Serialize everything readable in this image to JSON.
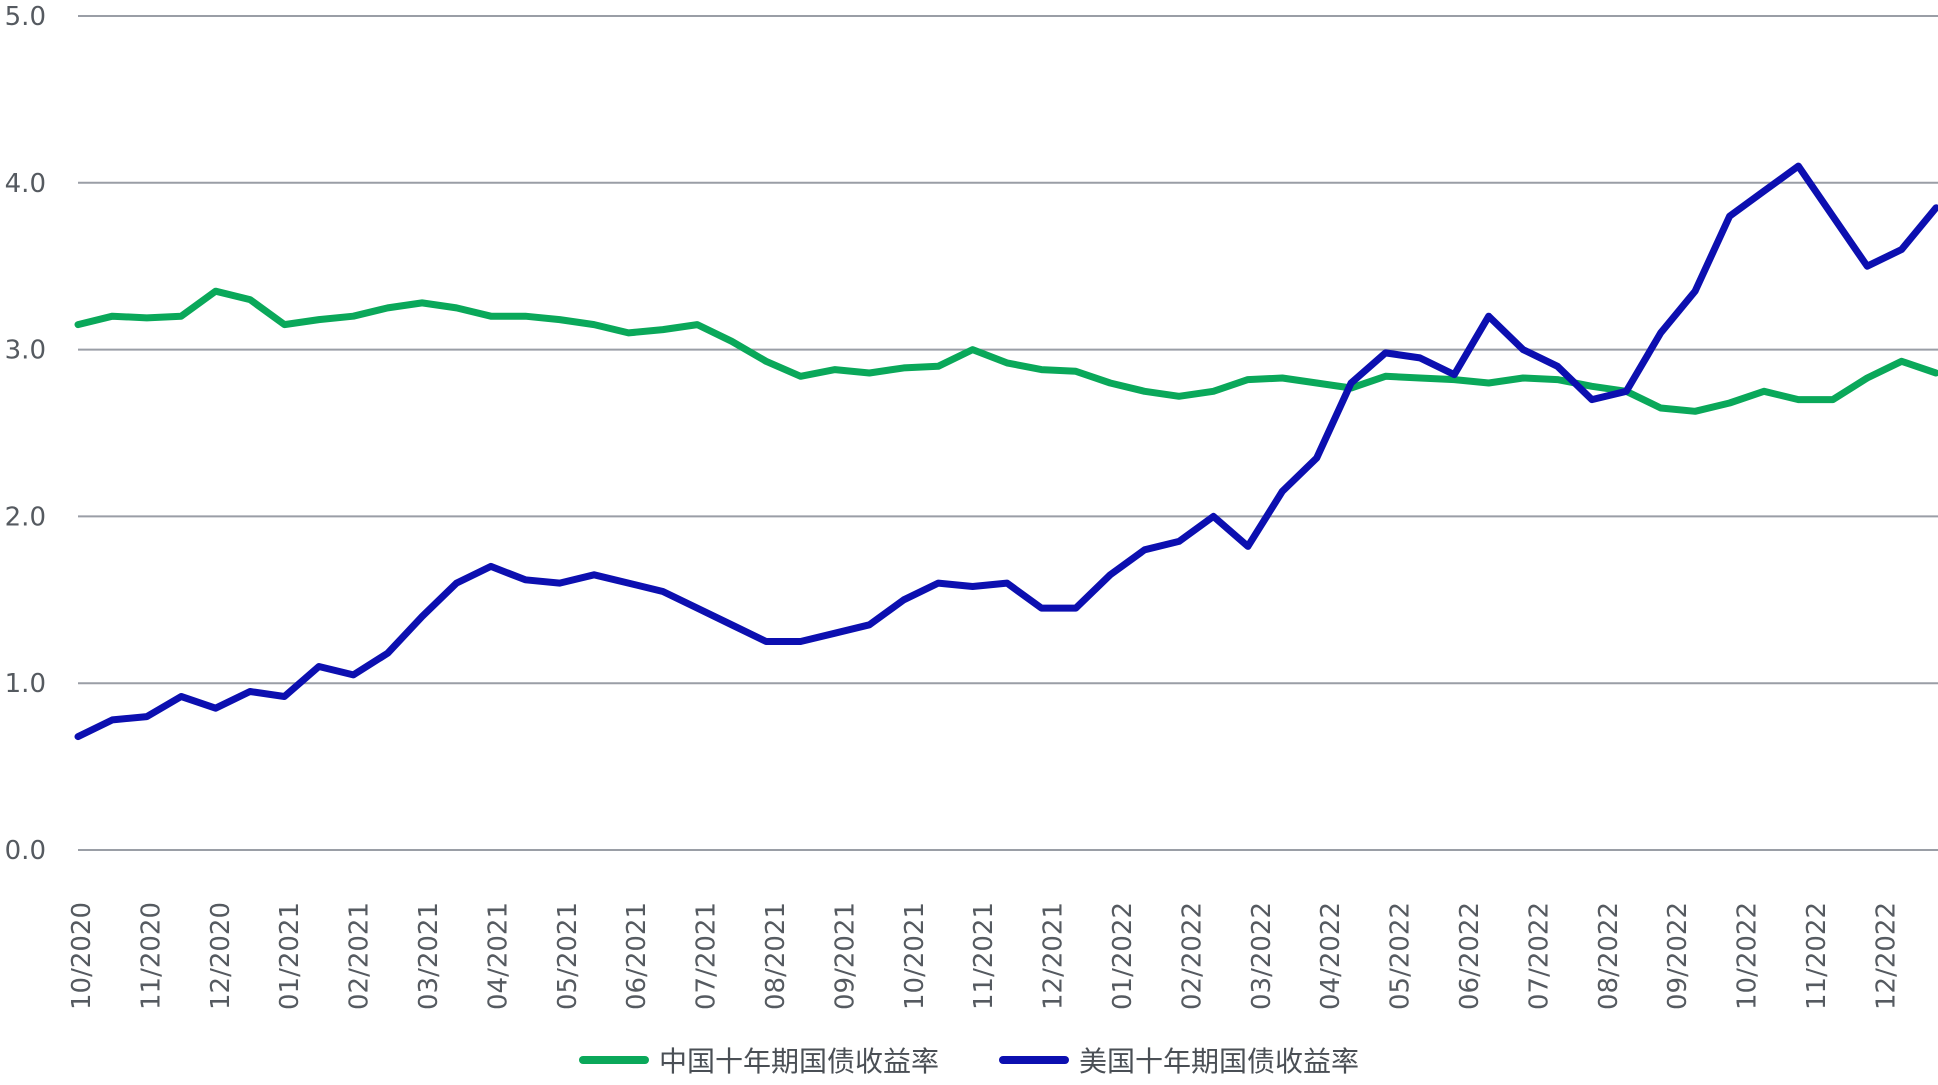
{
  "colors": {
    "china": "#0aa85a",
    "us": "#0c0fb0",
    "grid": "#9a9ea6"
  },
  "chart_data": {
    "type": "line",
    "ylim": [
      0,
      5
    ],
    "yticks": [
      "0.0",
      "1.0",
      "2.0",
      "3.0",
      "4.0",
      "5.0"
    ],
    "xticks": [
      "10/2020",
      "11/2020",
      "12/2020",
      "01/2021",
      "02/2021",
      "03/2021",
      "04/2021",
      "05/2021",
      "06/2021",
      "07/2021",
      "08/2021",
      "09/2021",
      "10/2021",
      "11/2021",
      "12/2021",
      "01/2022",
      "02/2022",
      "03/2022",
      "04/2022",
      "05/2022",
      "06/2022",
      "07/2022",
      "08/2022",
      "09/2022",
      "10/2022",
      "11/2022",
      "12/2022"
    ],
    "grid": true,
    "legend_position": "bottom",
    "x": [
      "10/2020",
      "10/2020",
      "11/2020",
      "11/2020",
      "12/2020",
      "12/2020",
      "01/2021",
      "01/2021",
      "02/2021",
      "02/2021",
      "03/2021",
      "03/2021",
      "04/2021",
      "04/2021",
      "05/2021",
      "05/2021",
      "06/2021",
      "06/2021",
      "07/2021",
      "07/2021",
      "08/2021",
      "08/2021",
      "09/2021",
      "09/2021",
      "10/2021",
      "10/2021",
      "11/2021",
      "11/2021",
      "12/2021",
      "12/2021",
      "01/2022",
      "01/2022",
      "02/2022",
      "02/2022",
      "03/2022",
      "03/2022",
      "04/2022",
      "04/2022",
      "05/2022",
      "05/2022",
      "06/2022",
      "06/2022",
      "07/2022",
      "07/2022",
      "08/2022",
      "08/2022",
      "09/2022",
      "09/2022",
      "10/2022",
      "10/2022",
      "11/2022",
      "11/2022",
      "12/2022",
      "12/2022",
      "12/2022"
    ],
    "series": [
      {
        "name": "中国十年期国债收益率",
        "values": [
          3.15,
          3.2,
          3.19,
          3.2,
          3.35,
          3.3,
          3.15,
          3.18,
          3.2,
          3.25,
          3.28,
          3.25,
          3.2,
          3.2,
          3.18,
          3.15,
          3.1,
          3.12,
          3.15,
          3.05,
          2.93,
          2.84,
          2.88,
          2.86,
          2.89,
          2.9,
          3.0,
          2.92,
          2.88,
          2.87,
          2.8,
          2.75,
          2.72,
          2.75,
          2.82,
          2.83,
          2.8,
          2.77,
          2.84,
          2.83,
          2.82,
          2.8,
          2.83,
          2.82,
          2.78,
          2.75,
          2.65,
          2.63,
          2.68,
          2.75,
          2.7,
          2.7,
          2.83,
          2.93,
          2.86
        ]
      },
      {
        "name": "美国十年期国债收益率",
        "values": [
          0.68,
          0.78,
          0.8,
          0.92,
          0.85,
          0.95,
          0.92,
          1.1,
          1.05,
          1.18,
          1.4,
          1.6,
          1.7,
          1.62,
          1.6,
          1.65,
          1.6,
          1.55,
          1.45,
          1.35,
          1.25,
          1.25,
          1.3,
          1.35,
          1.5,
          1.6,
          1.58,
          1.6,
          1.45,
          1.45,
          1.65,
          1.8,
          1.85,
          2.0,
          1.82,
          2.15,
          2.35,
          2.8,
          2.98,
          2.95,
          2.85,
          3.2,
          3.0,
          2.9,
          2.7,
          2.75,
          3.1,
          3.35,
          3.8,
          3.95,
          4.1,
          3.8,
          3.5,
          3.6,
          3.85
        ]
      }
    ]
  }
}
